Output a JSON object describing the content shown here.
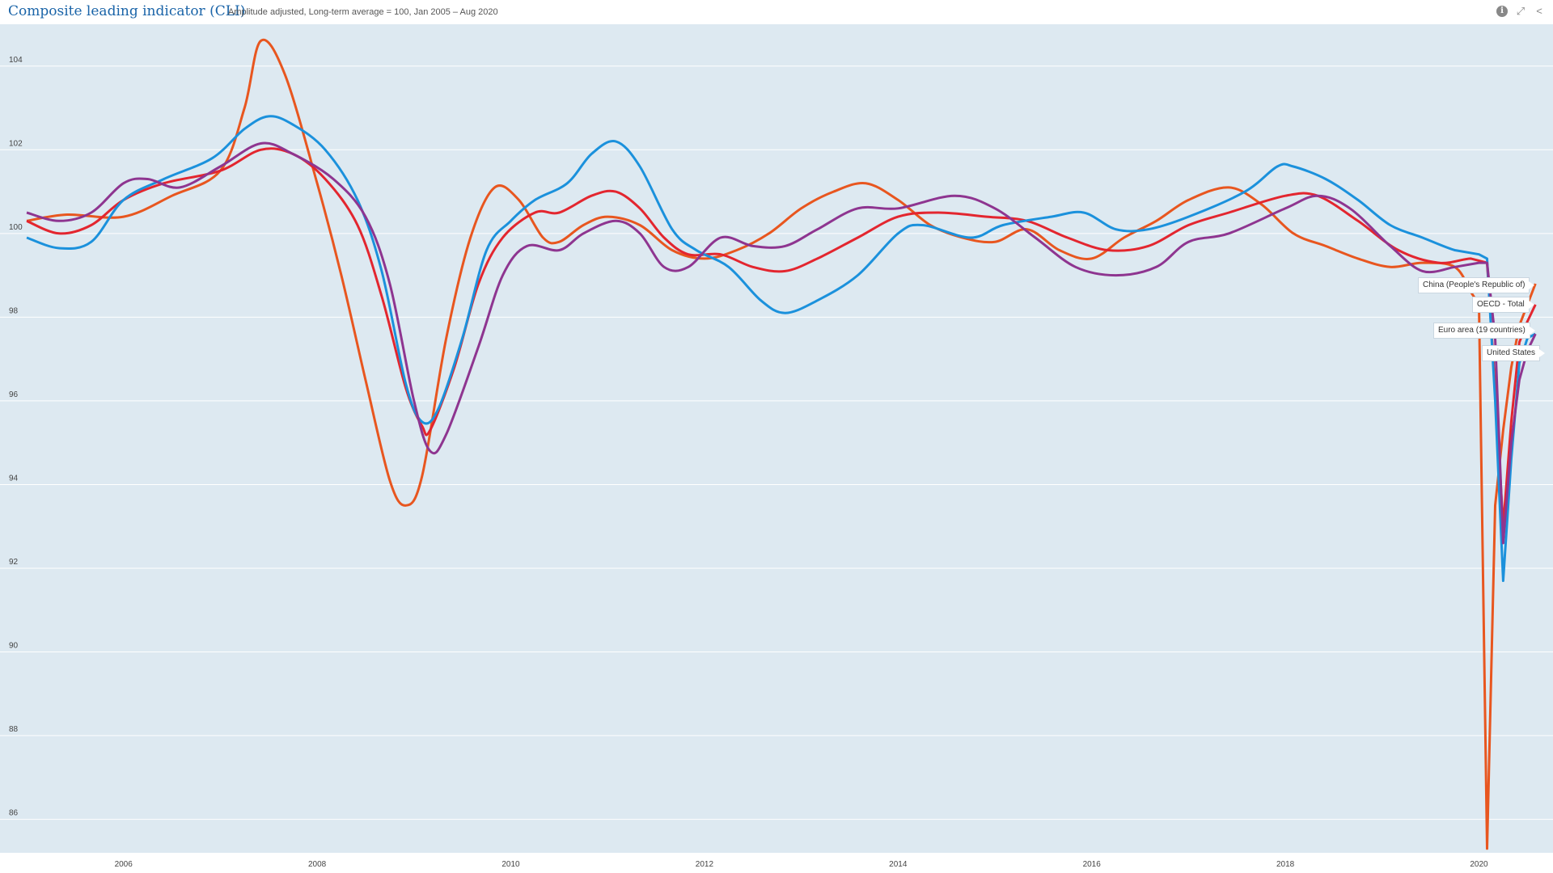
{
  "header": {
    "title": "Composite leading indicator (CLI)",
    "subtitle": "Amplitude adjusted, Long-term average = 100, Jan 2005 – Aug 2020",
    "icons": [
      "info-icon",
      "fullscreen-icon",
      "share-icon"
    ]
  },
  "chart_data": {
    "type": "line",
    "title": "Composite leading indicator (CLI)",
    "subtitle": "Amplitude adjusted, Long-term average = 100, Jan 2005 – Aug 2020",
    "xlabel": "",
    "ylabel": "",
    "xlim": [
      "2005-01",
      "2020-08"
    ],
    "ylim": [
      85.2,
      105
    ],
    "x_ticks": [
      "2006",
      "2008",
      "2010",
      "2012",
      "2014",
      "2016",
      "2018",
      "2020"
    ],
    "y_ticks": [
      "86",
      "88",
      "90",
      "92",
      "94",
      "96",
      "98",
      "100",
      "102",
      "104"
    ],
    "grid": true,
    "background": "#dde9f1",
    "legend": "end-of-line labels",
    "series": [
      {
        "name": "China (People's Republic of)",
        "color": "#e8561f",
        "points": [
          [
            "2005-01",
            100.3
          ],
          [
            "2005-06",
            100.45
          ],
          [
            "2006-01",
            100.4
          ],
          [
            "2006-07",
            100.9
          ],
          [
            "2007-01",
            101.5
          ],
          [
            "2007-04",
            103.0
          ],
          [
            "2007-06",
            104.6
          ],
          [
            "2007-09",
            103.8
          ],
          [
            "2008-01",
            101.2
          ],
          [
            "2008-04",
            99.0
          ],
          [
            "2008-07",
            96.5
          ],
          [
            "2008-10",
            94.1
          ],
          [
            "2008-12",
            93.5
          ],
          [
            "2009-02",
            94.2
          ],
          [
            "2009-05",
            97.5
          ],
          [
            "2009-08",
            99.9
          ],
          [
            "2009-11",
            101.1
          ],
          [
            "2010-02",
            100.8
          ],
          [
            "2010-05",
            99.9
          ],
          [
            "2010-07",
            99.8
          ],
          [
            "2010-10",
            100.2
          ],
          [
            "2011-01",
            100.4
          ],
          [
            "2011-05",
            100.2
          ],
          [
            "2011-09",
            99.6
          ],
          [
            "2012-01",
            99.4
          ],
          [
            "2012-05",
            99.6
          ],
          [
            "2012-09",
            100.0
          ],
          [
            "2013-01",
            100.6
          ],
          [
            "2013-05",
            101.0
          ],
          [
            "2013-09",
            101.2
          ],
          [
            "2014-01",
            100.8
          ],
          [
            "2014-05",
            100.2
          ],
          [
            "2014-09",
            99.9
          ],
          [
            "2015-01",
            99.8
          ],
          [
            "2015-05",
            100.1
          ],
          [
            "2015-09",
            99.6
          ],
          [
            "2016-01",
            99.4
          ],
          [
            "2016-05",
            99.9
          ],
          [
            "2016-09",
            100.3
          ],
          [
            "2017-01",
            100.8
          ],
          [
            "2017-06",
            101.1
          ],
          [
            "2017-10",
            100.7
          ],
          [
            "2018-02",
            100.0
          ],
          [
            "2018-06",
            99.7
          ],
          [
            "2018-10",
            99.4
          ],
          [
            "2019-02",
            99.2
          ],
          [
            "2019-06",
            99.3
          ],
          [
            "2019-10",
            99.2
          ],
          [
            "2019-12",
            98.6
          ],
          [
            "2020-01",
            98.3
          ],
          [
            "2020-02",
            85.3
          ],
          [
            "2020-03",
            93.5
          ],
          [
            "2020-04",
            95.3
          ],
          [
            "2020-05",
            96.8
          ],
          [
            "2020-06",
            97.8
          ],
          [
            "2020-07",
            98.3
          ],
          [
            "2020-08",
            98.8
          ]
        ]
      },
      {
        "name": "OECD - Total",
        "color": "#e3262f",
        "points": [
          [
            "2005-01",
            100.3
          ],
          [
            "2005-05",
            100.0
          ],
          [
            "2005-09",
            100.2
          ],
          [
            "2006-01",
            100.8
          ],
          [
            "2006-06",
            101.2
          ],
          [
            "2007-01",
            101.5
          ],
          [
            "2007-06",
            102.0
          ],
          [
            "2007-10",
            101.9
          ],
          [
            "2008-02",
            101.3
          ],
          [
            "2008-06",
            100.2
          ],
          [
            "2008-09",
            98.5
          ],
          [
            "2008-12",
            96.3
          ],
          [
            "2009-02",
            95.4
          ],
          [
            "2009-03",
            95.3
          ],
          [
            "2009-06",
            96.8
          ],
          [
            "2009-09",
            98.8
          ],
          [
            "2009-12",
            99.9
          ],
          [
            "2010-04",
            100.5
          ],
          [
            "2010-07",
            100.5
          ],
          [
            "2010-11",
            100.9
          ],
          [
            "2011-02",
            101.0
          ],
          [
            "2011-05",
            100.6
          ],
          [
            "2011-08",
            99.9
          ],
          [
            "2011-11",
            99.5
          ],
          [
            "2012-03",
            99.5
          ],
          [
            "2012-07",
            99.2
          ],
          [
            "2012-11",
            99.1
          ],
          [
            "2013-03",
            99.4
          ],
          [
            "2013-08",
            99.9
          ],
          [
            "2014-01",
            100.4
          ],
          [
            "2014-06",
            100.5
          ],
          [
            "2014-12",
            100.4
          ],
          [
            "2015-05",
            100.3
          ],
          [
            "2015-10",
            99.9
          ],
          [
            "2016-03",
            99.6
          ],
          [
            "2016-08",
            99.7
          ],
          [
            "2017-01",
            100.2
          ],
          [
            "2017-06",
            100.5
          ],
          [
            "2018-01",
            100.9
          ],
          [
            "2018-05",
            100.9
          ],
          [
            "2018-10",
            100.3
          ],
          [
            "2019-03",
            99.6
          ],
          [
            "2019-08",
            99.3
          ],
          [
            "2019-12",
            99.4
          ],
          [
            "2020-02",
            99.3
          ],
          [
            "2020-03",
            96.3
          ],
          [
            "2020-04",
            93.0
          ],
          [
            "2020-05",
            95.5
          ],
          [
            "2020-06",
            97.4
          ],
          [
            "2020-07",
            97.9
          ],
          [
            "2020-08",
            98.3
          ]
        ]
      },
      {
        "name": "Euro area (19 countries)",
        "color": "#1b91dc",
        "points": [
          [
            "2005-01",
            99.9
          ],
          [
            "2005-05",
            99.65
          ],
          [
            "2005-09",
            99.8
          ],
          [
            "2006-01",
            100.8
          ],
          [
            "2006-06",
            101.3
          ],
          [
            "2006-12",
            101.8
          ],
          [
            "2007-04",
            102.5
          ],
          [
            "2007-07",
            102.8
          ],
          [
            "2007-10",
            102.6
          ],
          [
            "2008-02",
            102.0
          ],
          [
            "2008-06",
            100.8
          ],
          [
            "2008-09",
            99.1
          ],
          [
            "2008-12",
            96.4
          ],
          [
            "2009-02",
            95.5
          ],
          [
            "2009-04",
            95.8
          ],
          [
            "2009-07",
            97.5
          ],
          [
            "2009-10",
            99.6
          ],
          [
            "2010-01",
            100.3
          ],
          [
            "2010-04",
            100.8
          ],
          [
            "2010-08",
            101.2
          ],
          [
            "2010-11",
            101.9
          ],
          [
            "2011-02",
            102.2
          ],
          [
            "2011-05",
            101.6
          ],
          [
            "2011-09",
            100.1
          ],
          [
            "2011-12",
            99.6
          ],
          [
            "2012-04",
            99.2
          ],
          [
            "2012-08",
            98.4
          ],
          [
            "2012-11",
            98.1
          ],
          [
            "2013-03",
            98.4
          ],
          [
            "2013-08",
            99.0
          ],
          [
            "2014-01",
            100.0
          ],
          [
            "2014-04",
            100.2
          ],
          [
            "2014-10",
            99.9
          ],
          [
            "2015-02",
            100.2
          ],
          [
            "2015-08",
            100.4
          ],
          [
            "2015-12",
            100.5
          ],
          [
            "2016-04",
            100.1
          ],
          [
            "2016-08",
            100.1
          ],
          [
            "2017-01",
            100.4
          ],
          [
            "2017-08",
            101.0
          ],
          [
            "2017-12",
            101.6
          ],
          [
            "2018-02",
            101.6
          ],
          [
            "2018-06",
            101.3
          ],
          [
            "2018-10",
            100.8
          ],
          [
            "2019-02",
            100.2
          ],
          [
            "2019-06",
            99.9
          ],
          [
            "2019-10",
            99.6
          ],
          [
            "2020-01",
            99.5
          ],
          [
            "2020-02",
            99.4
          ],
          [
            "2020-03",
            96.0
          ],
          [
            "2020-04",
            91.7
          ],
          [
            "2020-05",
            94.6
          ],
          [
            "2020-06",
            96.9
          ],
          [
            "2020-07",
            97.5
          ],
          [
            "2020-08",
            97.6
          ]
        ]
      },
      {
        "name": "United States",
        "color": "#8e3590",
        "points": [
          [
            "2005-01",
            100.5
          ],
          [
            "2005-05",
            100.3
          ],
          [
            "2005-09",
            100.5
          ],
          [
            "2006-01",
            101.2
          ],
          [
            "2006-04",
            101.3
          ],
          [
            "2006-08",
            101.1
          ],
          [
            "2007-01",
            101.6
          ],
          [
            "2007-06",
            102.15
          ],
          [
            "2007-10",
            101.9
          ],
          [
            "2008-03",
            101.3
          ],
          [
            "2008-07",
            100.4
          ],
          [
            "2008-10",
            98.8
          ],
          [
            "2009-01",
            96.0
          ],
          [
            "2009-03",
            94.8
          ],
          [
            "2009-05",
            95.2
          ],
          [
            "2009-09",
            97.3
          ],
          [
            "2009-12",
            99.0
          ],
          [
            "2010-03",
            99.7
          ],
          [
            "2010-07",
            99.6
          ],
          [
            "2010-10",
            100.0
          ],
          [
            "2011-02",
            100.3
          ],
          [
            "2011-05",
            100.0
          ],
          [
            "2011-08",
            99.2
          ],
          [
            "2011-11",
            99.2
          ],
          [
            "2012-03",
            99.9
          ],
          [
            "2012-07",
            99.7
          ],
          [
            "2012-11",
            99.7
          ],
          [
            "2013-03",
            100.1
          ],
          [
            "2013-08",
            100.6
          ],
          [
            "2014-01",
            100.6
          ],
          [
            "2014-08",
            100.9
          ],
          [
            "2015-01",
            100.6
          ],
          [
            "2015-06",
            99.9
          ],
          [
            "2015-11",
            99.2
          ],
          [
            "2016-04",
            99.0
          ],
          [
            "2016-09",
            99.2
          ],
          [
            "2017-01",
            99.8
          ],
          [
            "2017-06",
            100.0
          ],
          [
            "2018-01",
            100.6
          ],
          [
            "2018-05",
            100.9
          ],
          [
            "2018-09",
            100.6
          ],
          [
            "2019-02",
            99.7
          ],
          [
            "2019-06",
            99.1
          ],
          [
            "2019-10",
            99.2
          ],
          [
            "2020-01",
            99.3
          ],
          [
            "2020-02",
            99.3
          ],
          [
            "2020-03",
            97.5
          ],
          [
            "2020-04",
            92.6
          ],
          [
            "2020-05",
            95.0
          ],
          [
            "2020-06",
            96.5
          ],
          [
            "2020-07",
            97.2
          ],
          [
            "2020-08",
            97.6
          ]
        ]
      }
    ]
  }
}
